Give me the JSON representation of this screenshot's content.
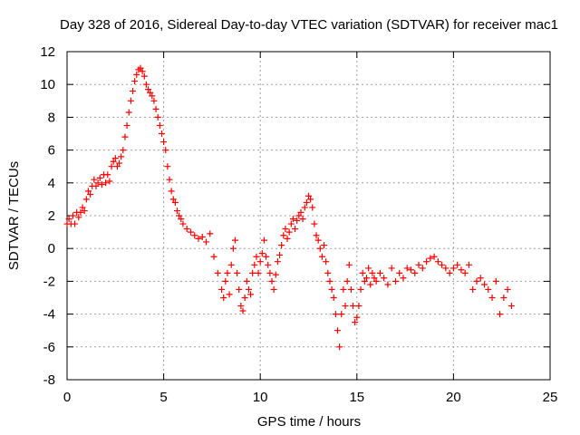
{
  "chart_data": {
    "type": "scatter",
    "title": "Day 328 of 2016, Sidereal Day-to-day VTEC variation (SDTVAR) for receiver mac1",
    "xlabel": "GPS time / hours",
    "ylabel": "SDTVAR / TECUs",
    "xlim": [
      0,
      25
    ],
    "ylim": [
      -8,
      12
    ],
    "xticks": [
      0,
      5,
      10,
      15,
      20,
      25
    ],
    "yticks": [
      -8,
      -6,
      -4,
      -2,
      0,
      2,
      4,
      6,
      8,
      10,
      12
    ],
    "xtick_labels": [
      "0",
      "5",
      "10",
      "15",
      "20",
      "25"
    ],
    "ytick_labels": [
      "-8",
      "-6",
      "-4",
      "-2",
      "0",
      "2",
      "4",
      "6",
      "8",
      "10",
      "12"
    ],
    "grid": true,
    "marker": "+",
    "color": "#ff0000",
    "series": [
      {
        "name": "mac1",
        "points": [
          [
            0.0,
            1.5
          ],
          [
            0.1,
            1.8
          ],
          [
            0.2,
            1.5
          ],
          [
            0.3,
            2.0
          ],
          [
            0.4,
            1.5
          ],
          [
            0.5,
            2.2
          ],
          [
            0.6,
            1.9
          ],
          [
            0.7,
            2.2
          ],
          [
            0.8,
            2.5
          ],
          [
            0.9,
            2.3
          ],
          [
            1.0,
            3.0
          ],
          [
            1.1,
            3.5
          ],
          [
            1.2,
            3.3
          ],
          [
            1.3,
            3.8
          ],
          [
            1.4,
            4.2
          ],
          [
            1.5,
            3.8
          ],
          [
            1.6,
            4.0
          ],
          [
            1.7,
            4.3
          ],
          [
            1.8,
            3.9
          ],
          [
            1.9,
            4.5
          ],
          [
            2.0,
            4.0
          ],
          [
            2.1,
            4.5
          ],
          [
            2.2,
            4.1
          ],
          [
            2.3,
            5.0
          ],
          [
            2.4,
            5.3
          ],
          [
            2.5,
            5.5
          ],
          [
            2.6,
            5.0
          ],
          [
            2.7,
            5.2
          ],
          [
            2.8,
            5.6
          ],
          [
            2.9,
            6.0
          ],
          [
            3.0,
            6.8
          ],
          [
            3.1,
            7.5
          ],
          [
            3.2,
            8.3
          ],
          [
            3.3,
            9.0
          ],
          [
            3.4,
            9.6
          ],
          [
            3.5,
            10.2
          ],
          [
            3.6,
            10.6
          ],
          [
            3.7,
            10.9
          ],
          [
            3.8,
            11.0
          ],
          [
            3.9,
            10.8
          ],
          [
            4.0,
            10.5
          ],
          [
            4.1,
            10.0
          ],
          [
            4.2,
            9.7
          ],
          [
            4.3,
            9.5
          ],
          [
            4.4,
            9.3
          ],
          [
            4.5,
            9.0
          ],
          [
            4.6,
            8.5
          ],
          [
            4.7,
            8.0
          ],
          [
            4.8,
            7.5
          ],
          [
            4.9,
            7.0
          ],
          [
            5.0,
            6.5
          ],
          [
            5.1,
            6.0
          ],
          [
            5.2,
            5.0
          ],
          [
            5.3,
            4.2
          ],
          [
            5.4,
            3.5
          ],
          [
            5.5,
            3.0
          ],
          [
            5.6,
            2.8
          ],
          [
            5.7,
            2.3
          ],
          [
            5.8,
            2.0
          ],
          [
            5.9,
            1.8
          ],
          [
            6.0,
            1.5
          ],
          [
            6.2,
            1.2
          ],
          [
            6.4,
            1.0
          ],
          [
            6.6,
            0.8
          ],
          [
            6.8,
            0.6
          ],
          [
            7.0,
            0.7
          ],
          [
            7.2,
            0.4
          ],
          [
            7.4,
            0.9
          ],
          [
            7.6,
            -0.5
          ],
          [
            7.8,
            -1.5
          ],
          [
            8.0,
            -2.5
          ],
          [
            8.1,
            -3.0
          ],
          [
            8.2,
            -2.0
          ],
          [
            8.3,
            -1.5
          ],
          [
            8.4,
            -2.8
          ],
          [
            8.5,
            -1.0
          ],
          [
            8.6,
            0.0
          ],
          [
            8.7,
            0.5
          ],
          [
            8.8,
            -1.5
          ],
          [
            8.9,
            -2.5
          ],
          [
            9.0,
            -3.5
          ],
          [
            9.1,
            -3.8
          ],
          [
            9.2,
            -3.0
          ],
          [
            9.3,
            -2.0
          ],
          [
            9.4,
            -2.5
          ],
          [
            9.5,
            -2.8
          ],
          [
            9.6,
            -1.5
          ],
          [
            9.7,
            -1.0
          ],
          [
            9.8,
            -0.5
          ],
          [
            9.9,
            -1.5
          ],
          [
            10.0,
            -0.8
          ],
          [
            10.1,
            -0.3
          ],
          [
            10.2,
            0.5
          ],
          [
            10.3,
            -0.5
          ],
          [
            10.4,
            -1.0
          ],
          [
            10.5,
            -1.5
          ],
          [
            10.6,
            -2.0
          ],
          [
            10.7,
            -2.5
          ],
          [
            10.8,
            -1.6
          ],
          [
            10.9,
            -0.8
          ],
          [
            11.0,
            -0.4
          ],
          [
            11.1,
            0.2
          ],
          [
            11.2,
            0.8
          ],
          [
            11.3,
            1.2
          ],
          [
            11.4,
            0.6
          ],
          [
            11.5,
            1.0
          ],
          [
            11.6,
            1.5
          ],
          [
            11.7,
            1.8
          ],
          [
            11.8,
            1.2
          ],
          [
            11.9,
            1.7
          ],
          [
            12.0,
            2.0
          ],
          [
            12.1,
            2.2
          ],
          [
            12.2,
            1.8
          ],
          [
            12.3,
            2.5
          ],
          [
            12.4,
            2.8
          ],
          [
            12.5,
            3.2
          ],
          [
            12.6,
            3.0
          ],
          [
            12.7,
            2.5
          ],
          [
            12.8,
            1.5
          ],
          [
            12.9,
            0.8
          ],
          [
            13.0,
            0.5
          ],
          [
            13.1,
            0.0
          ],
          [
            13.2,
            -0.5
          ],
          [
            13.3,
            0.2
          ],
          [
            13.4,
            -0.8
          ],
          [
            13.5,
            -1.5
          ],
          [
            13.6,
            -2.0
          ],
          [
            13.7,
            -2.5
          ],
          [
            13.8,
            -3.0
          ],
          [
            13.9,
            -4.0
          ],
          [
            14.0,
            -5.0
          ],
          [
            14.1,
            -6.0
          ],
          [
            14.2,
            -4.0
          ],
          [
            14.3,
            -2.5
          ],
          [
            14.4,
            -3.5
          ],
          [
            14.5,
            -2.0
          ],
          [
            14.6,
            -1.0
          ],
          [
            14.7,
            -2.5
          ],
          [
            14.8,
            -3.5
          ],
          [
            14.9,
            -4.5
          ],
          [
            15.0,
            -4.2
          ],
          [
            15.1,
            -3.5
          ],
          [
            15.2,
            -2.5
          ],
          [
            15.3,
            -1.5
          ],
          [
            15.4,
            -2.0
          ],
          [
            15.5,
            -1.8
          ],
          [
            15.6,
            -1.2
          ],
          [
            15.7,
            -2.2
          ],
          [
            15.8,
            -1.5
          ],
          [
            15.9,
            -1.8
          ],
          [
            16.0,
            -2.0
          ],
          [
            16.2,
            -1.5
          ],
          [
            16.4,
            -1.8
          ],
          [
            16.6,
            -2.2
          ],
          [
            16.8,
            -1.2
          ],
          [
            17.0,
            -2.0
          ],
          [
            17.2,
            -1.5
          ],
          [
            17.4,
            -1.8
          ],
          [
            17.6,
            -1.2
          ],
          [
            17.8,
            -1.3
          ],
          [
            18.0,
            -1.5
          ],
          [
            18.2,
            -1.0
          ],
          [
            18.4,
            -1.2
          ],
          [
            18.6,
            -0.8
          ],
          [
            18.8,
            -0.6
          ],
          [
            19.0,
            -0.5
          ],
          [
            19.2,
            -0.8
          ],
          [
            19.4,
            -1.0
          ],
          [
            19.6,
            -1.2
          ],
          [
            19.8,
            -1.5
          ],
          [
            20.0,
            -1.2
          ],
          [
            20.2,
            -1.0
          ],
          [
            20.4,
            -1.3
          ],
          [
            20.6,
            -1.5
          ],
          [
            20.8,
            -1.0
          ],
          [
            21.0,
            -2.5
          ],
          [
            21.2,
            -2.0
          ],
          [
            21.4,
            -1.8
          ],
          [
            21.6,
            -2.2
          ],
          [
            21.8,
            -2.5
          ],
          [
            22.0,
            -3.0
          ],
          [
            22.2,
            -2.0
          ],
          [
            22.4,
            -4.0
          ],
          [
            22.6,
            -3.0
          ],
          [
            22.8,
            -2.5
          ],
          [
            23.0,
            -3.5
          ]
        ]
      }
    ]
  }
}
